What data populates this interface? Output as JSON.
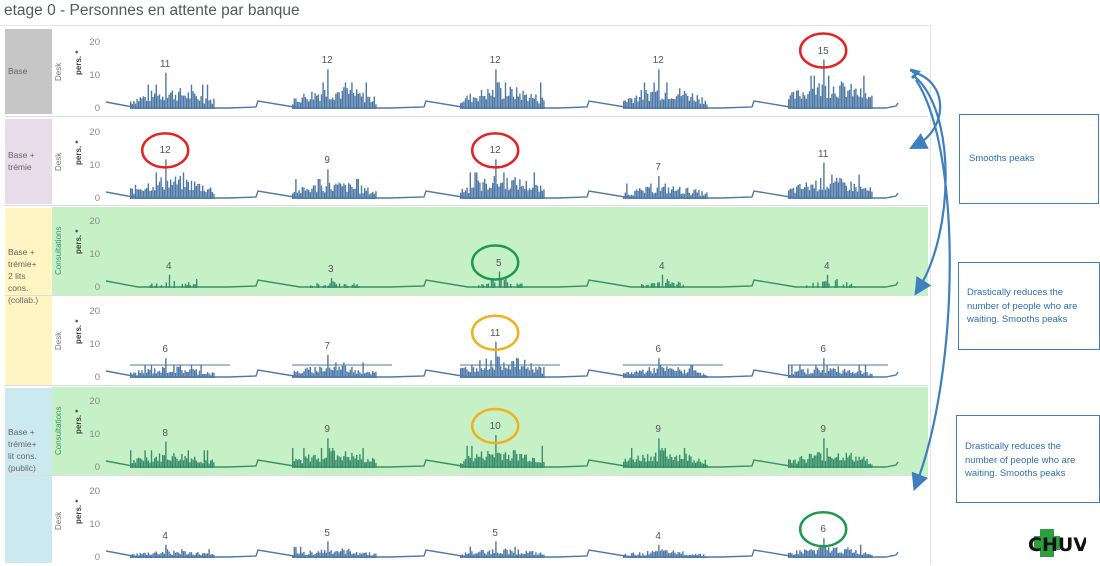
{
  "title": "etage 0 - Personnes en attente par banque",
  "bands": [
    {
      "label": "Base",
      "color": "#c6c6c6"
    },
    {
      "label": "Base +\ntrémie",
      "color": "#e8dceb"
    },
    {
      "label": "Base +\ntrémie+\n2 lits\ncons.\n(collab.)",
      "color": "#fff5c2"
    },
    {
      "label": "Base +\ntrémie+\nlit cons.\n(public)",
      "color": "#cde9f0"
    }
  ],
  "y_axis_title": "pers. *",
  "y_ticks": [
    "20",
    "10",
    "0"
  ],
  "chart_data": {
    "type": "bar",
    "ylabel": "pers. *",
    "ylim": [
      0,
      20
    ],
    "grid": false,
    "panels": [
      {
        "row_label": "Desk",
        "group": "Base",
        "series_color": "#4e79a7",
        "highlight": false,
        "peaks": [
          11,
          12,
          12,
          12,
          15
        ]
      },
      {
        "row_label": "Desk",
        "group": "Base + trémie",
        "series_color": "#4e79a7",
        "highlight": false,
        "peaks": [
          12,
          9,
          12,
          7,
          11
        ]
      },
      {
        "row_label": "Consultations",
        "group": "Base + trémie+ 2 lits cons. (collab.)",
        "series_color": "#3a8f6b",
        "highlight": true,
        "peaks": [
          4,
          3,
          5,
          4,
          4
        ]
      },
      {
        "row_label": "Desk",
        "group": "Base + trémie+ 2 lits cons. (collab.)",
        "series_color": "#4e79a7",
        "highlight": false,
        "peaks": [
          6,
          7,
          11,
          6,
          6
        ]
      },
      {
        "row_label": "Consultations",
        "group": "Base + trémie+ lit cons. (public)",
        "series_color": "#3a8f6b",
        "highlight": true,
        "peaks": [
          8,
          9,
          10,
          9,
          9
        ]
      },
      {
        "row_label": "Desk",
        "group": "Base + trémie+ lit cons. (public)",
        "series_color": "#4e79a7",
        "highlight": false,
        "peaks": [
          4,
          5,
          5,
          4,
          6
        ]
      }
    ]
  },
  "circles": [
    {
      "panel": 0,
      "day": 4,
      "color": "#e32222"
    },
    {
      "panel": 1,
      "day": 0,
      "color": "#e32222"
    },
    {
      "panel": 1,
      "day": 2,
      "color": "#e32222"
    },
    {
      "panel": 2,
      "day": 2,
      "color": "#1e9a50"
    },
    {
      "panel": 3,
      "day": 2,
      "color": "#f2b11b"
    },
    {
      "panel": 4,
      "day": 2,
      "color": "#f2b11b"
    },
    {
      "panel": 5,
      "day": 4,
      "color": "#1e9a50"
    }
  ],
  "annotations": [
    {
      "text": "Smooths peaks"
    },
    {
      "text": "Drastically reduces the number of people who are waiting. Smooths peaks"
    },
    {
      "text": "Drastically reduces the number of people who are waiting. Smooths peaks"
    }
  ],
  "colors": {
    "arrow": "#3f7fc0",
    "highlight_bg": "#bcefbc"
  },
  "logo": {
    "text": "CHUV",
    "color_green": "#2e9e3e",
    "color_black": "#111111"
  }
}
